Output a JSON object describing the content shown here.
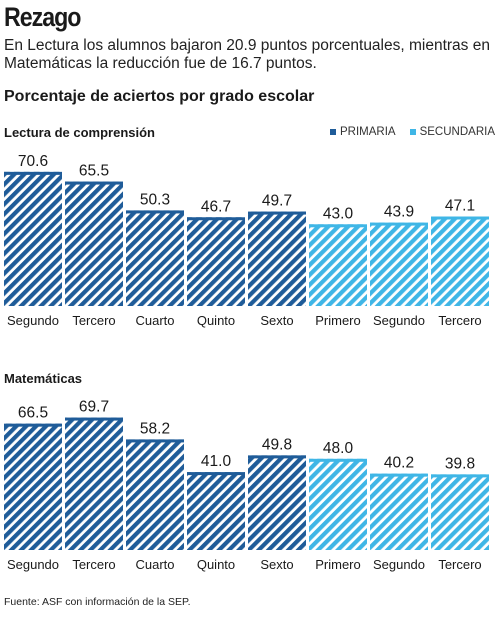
{
  "title": "Rezago",
  "subtitle": "En Lectura los alumnos bajaron 20.9 puntos porcentuales, mientras en Matemáticas la reducción fue de 16.7 puntos.",
  "section_title": "Porcentaje de aciertos por grado escolar",
  "legend": {
    "primaria": "PRIMARIA",
    "secundaria": "SECUNDARIA"
  },
  "colors": {
    "primaria": "#1f5c99",
    "secundaria": "#3fb6e6"
  },
  "source": "Fuente: ASF con información de la SEP.",
  "chart_data": [
    {
      "type": "bar",
      "title": "Lectura de comprensión",
      "categories": [
        "Segundo",
        "Tercero",
        "Cuarto",
        "Quinto",
        "Sexto",
        "Primero",
        "Segundo",
        "Tercero"
      ],
      "groups": [
        "PRIMARIA",
        "PRIMARIA",
        "PRIMARIA",
        "PRIMARIA",
        "PRIMARIA",
        "SECUNDARIA",
        "SECUNDARIA",
        "SECUNDARIA"
      ],
      "values": [
        70.6,
        65.5,
        50.3,
        46.7,
        49.7,
        43.0,
        43.9,
        47.1
      ],
      "value_labels": [
        "70.6",
        "65.5",
        "50.3",
        "46.7",
        "49.7",
        "43.0",
        "43.9",
        "47.1"
      ]
    },
    {
      "type": "bar",
      "title": "Matemáticas",
      "categories": [
        "Segundo",
        "Tercero",
        "Cuarto",
        "Quinto",
        "Sexto",
        "Primero",
        "Segundo",
        "Tercero"
      ],
      "groups": [
        "PRIMARIA",
        "PRIMARIA",
        "PRIMARIA",
        "PRIMARIA",
        "PRIMARIA",
        "SECUNDARIA",
        "SECUNDARIA",
        "SECUNDARIA"
      ],
      "values": [
        66.5,
        69.7,
        58.2,
        41.0,
        49.8,
        48.0,
        40.2,
        39.8
      ],
      "value_labels": [
        "66.5",
        "69.7",
        "58.2",
        "41.0",
        "49.8",
        "48.0",
        "40.2",
        "39.8"
      ]
    }
  ]
}
